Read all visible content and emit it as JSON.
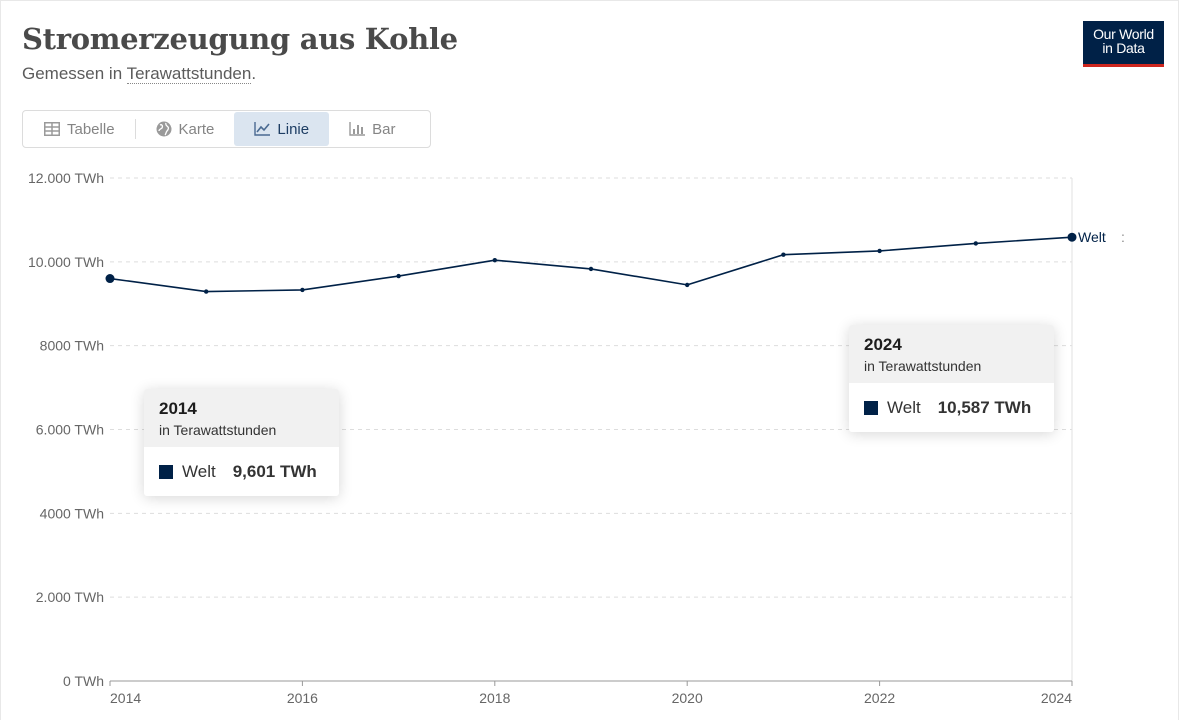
{
  "header": {
    "title": "Stromerzeugung aus Kohle",
    "subtitle_prefix": "Gemessen in ",
    "subtitle_unit": "Terawattstunden",
    "subtitle_suffix": "."
  },
  "logo": {
    "line1": "Our World",
    "line2": "in Data"
  },
  "tabs": [
    {
      "label": "Tabelle",
      "icon": "table-icon",
      "active": false
    },
    {
      "label": "Karte",
      "icon": "globe-icon",
      "active": false
    },
    {
      "label": "Linie",
      "icon": "line-chart-icon",
      "active": true
    },
    {
      "label": "Bar",
      "icon": "bar-chart-icon",
      "active": false
    }
  ],
  "tooltips": [
    {
      "year": "2014",
      "unit": "in Terawattstunden",
      "series": "Welt",
      "value": "9,601 TWh"
    },
    {
      "year": "2024",
      "unit": "in Terawattstunden",
      "series": "Welt",
      "value": "10,587 TWh"
    }
  ],
  "colors": {
    "series": "#002147",
    "grid": "#dddddd",
    "axis": "#666666"
  },
  "chart_data": {
    "type": "line",
    "title": "Stromerzeugung aus Kohle",
    "ylabel": "Terawattstunden",
    "x": [
      2014,
      2015,
      2016,
      2017,
      2018,
      2019,
      2020,
      2021,
      2022,
      2023,
      2024
    ],
    "series": [
      {
        "name": "Welt",
        "values": [
          9601,
          9290,
          9330,
          9660,
          10040,
          9830,
          9450,
          10170,
          10260,
          10440,
          10587
        ]
      }
    ],
    "xlim": [
      2014,
      2024
    ],
    "ylim": [
      0,
      12000
    ],
    "yticks": [
      0,
      2000,
      4000,
      6000,
      8000,
      10000,
      12000
    ],
    "ytick_labels": [
      "0 TWh",
      "2.000 TWh",
      "4000 TWh",
      "6.000 TWh",
      "8000 TWh",
      "10.000 TWh",
      "12.000 TWh"
    ],
    "xticks": [
      2014,
      2016,
      2018,
      2020,
      2022,
      2024
    ],
    "xtick_labels": [
      "2014",
      "2016",
      "2018",
      "2020",
      "2022",
      "2024"
    ],
    "grid": true,
    "end_label": "Welt",
    "end_label_extra": ":"
  }
}
